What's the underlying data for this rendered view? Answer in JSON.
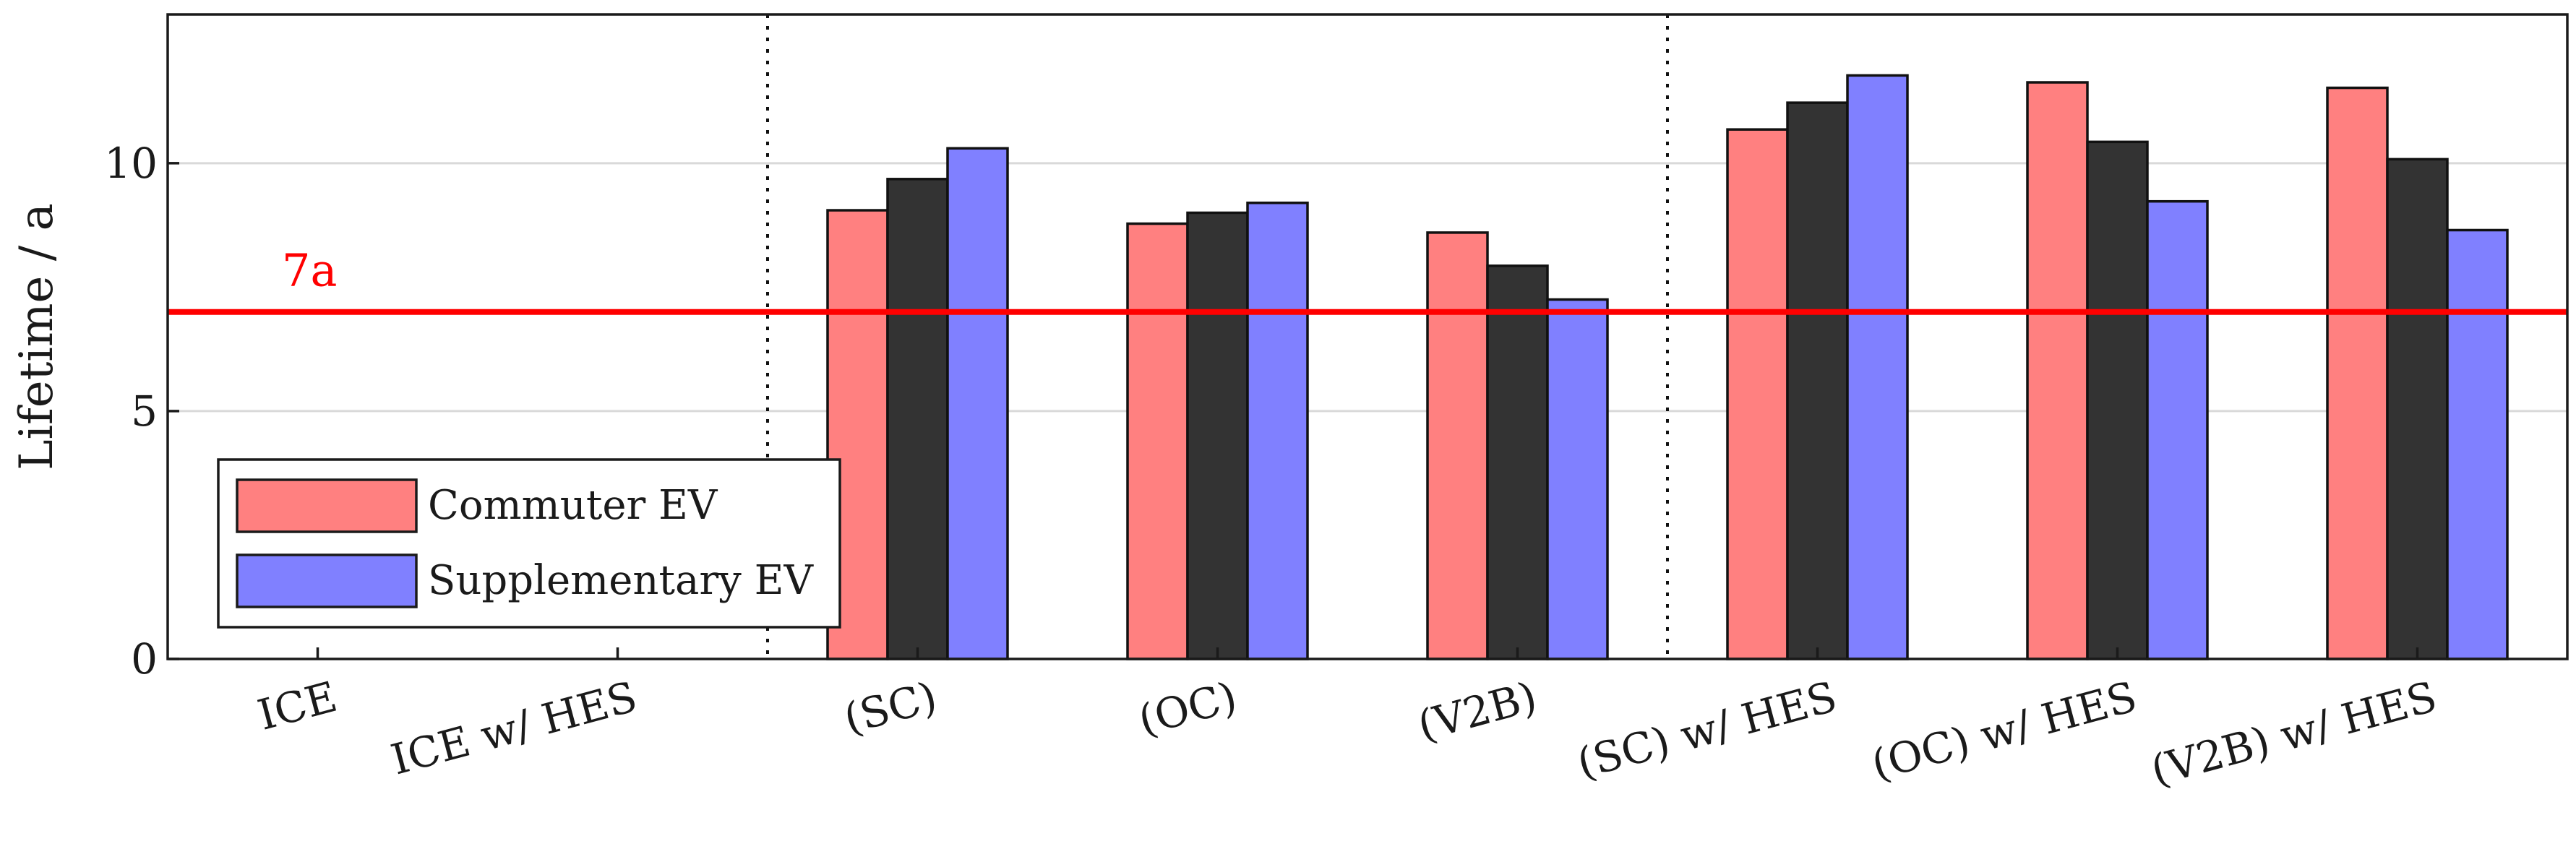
{
  "chart_data": {
    "type": "bar",
    "ylabel": "Lifetime / a",
    "xlabel": "",
    "ylim": [
      0,
      13
    ],
    "yticks": [
      0,
      5,
      10
    ],
    "grid": true,
    "categories": [
      "ICE",
      "ICE w/ HES",
      "(SC)",
      "(OC)",
      "(V2B)",
      "(SC) w/ HES",
      "(OC) w/ HES",
      "(V2B) w/ HES"
    ],
    "series": [
      {
        "name": "Commuter EV",
        "color": "#ff8080",
        "in_legend": true,
        "values": [
          null,
          null,
          9.05,
          8.78,
          8.6,
          10.68,
          11.63,
          11.52
        ]
      },
      {
        "name": "",
        "color": "#333333",
        "in_legend": false,
        "values": [
          null,
          null,
          9.68,
          9.0,
          7.93,
          11.22,
          10.43,
          10.08
        ]
      },
      {
        "name": "Supplementary EV",
        "color": "#8080ff",
        "in_legend": true,
        "values": [
          null,
          null,
          10.3,
          9.2,
          7.25,
          11.77,
          9.23,
          8.65
        ]
      }
    ],
    "reference_line": {
      "value": 7,
      "label": "7a",
      "color": "#ff0000"
    },
    "separators_after_category": [
      1,
      4
    ],
    "legend_location": "lower-left"
  }
}
